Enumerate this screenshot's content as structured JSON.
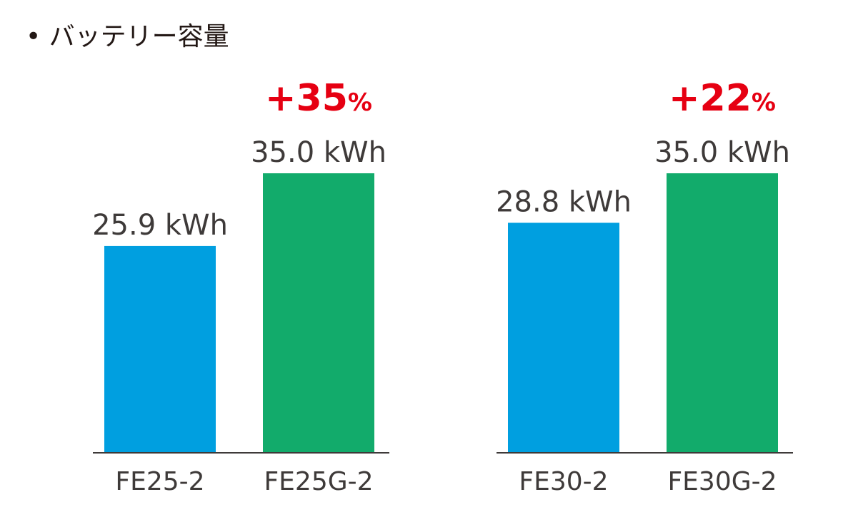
{
  "title": "• バッテリー容量",
  "colors": {
    "blue": "#009fe0",
    "green": "#12ab6b",
    "red": "#e60012",
    "text": "#3e3a39",
    "axis": "#3e3a39"
  },
  "chart_data": [
    {
      "type": "bar",
      "categories": [
        "FE25-2",
        "FE25G-2"
      ],
      "values": [
        25.9,
        35.0
      ],
      "value_labels": [
        "25.9 kWh",
        "35.0 kWh"
      ],
      "bar_colors": [
        "#009fe0",
        "#12ab6b"
      ],
      "annotation": {
        "number": "+35",
        "unit": "%"
      },
      "ylim": [
        0,
        35.0
      ],
      "grid": false
    },
    {
      "type": "bar",
      "categories": [
        "FE30-2",
        "FE30G-2"
      ],
      "values": [
        28.8,
        35.0
      ],
      "value_labels": [
        "28.8 kWh",
        "35.0 kWh"
      ],
      "bar_colors": [
        "#009fe0",
        "#12ab6b"
      ],
      "annotation": {
        "number": "+22",
        "unit": "%"
      },
      "ylim": [
        0,
        35.0
      ],
      "grid": false
    }
  ]
}
